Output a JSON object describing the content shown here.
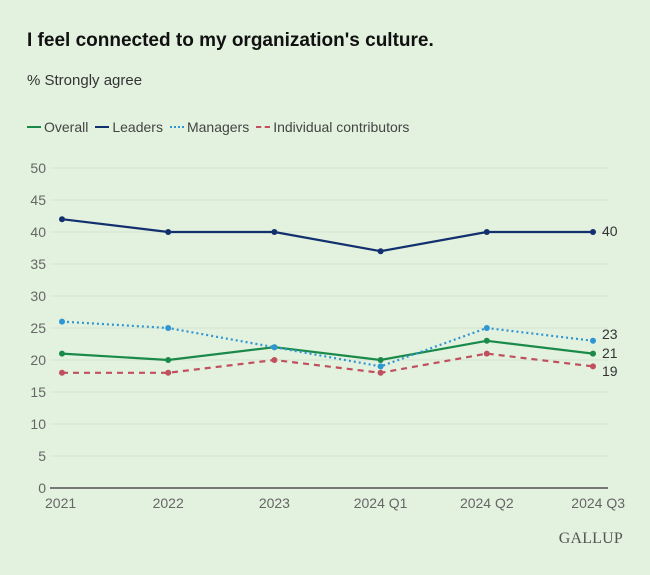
{
  "chart_data": {
    "type": "line",
    "title": "I feel connected to my organization's culture.",
    "subtitle": "% Strongly agree",
    "xlabel": "",
    "ylabel": "",
    "categories": [
      "2021",
      "2022",
      "2023",
      "2024 Q1",
      "2024 Q2",
      "2024 Q3"
    ],
    "ylim": [
      0,
      50
    ],
    "yticks": [
      0,
      5,
      10,
      15,
      20,
      25,
      30,
      35,
      40,
      45,
      50
    ],
    "grid": true,
    "legend_position": "top-left",
    "series": [
      {
        "name": "Overall",
        "values": [
          21,
          20,
          22,
          20,
          23,
          21
        ],
        "color": "#1a8a4a",
        "style": "solid",
        "end_label": "21"
      },
      {
        "name": "Leaders",
        "values": [
          42,
          40,
          40,
          37,
          40,
          40
        ],
        "color": "#13306e",
        "style": "solid",
        "end_label": "40"
      },
      {
        "name": "Managers",
        "values": [
          26,
          25,
          22,
          19,
          25,
          23
        ],
        "color": "#2e96d2",
        "style": "dotted",
        "end_label": "23"
      },
      {
        "name": "Individual contributors",
        "values": [
          18,
          18,
          20,
          18,
          21,
          19
        ],
        "color": "#c0505e",
        "style": "dashed",
        "end_label": "19"
      }
    ]
  },
  "branding": {
    "logo": "GALLUP"
  }
}
